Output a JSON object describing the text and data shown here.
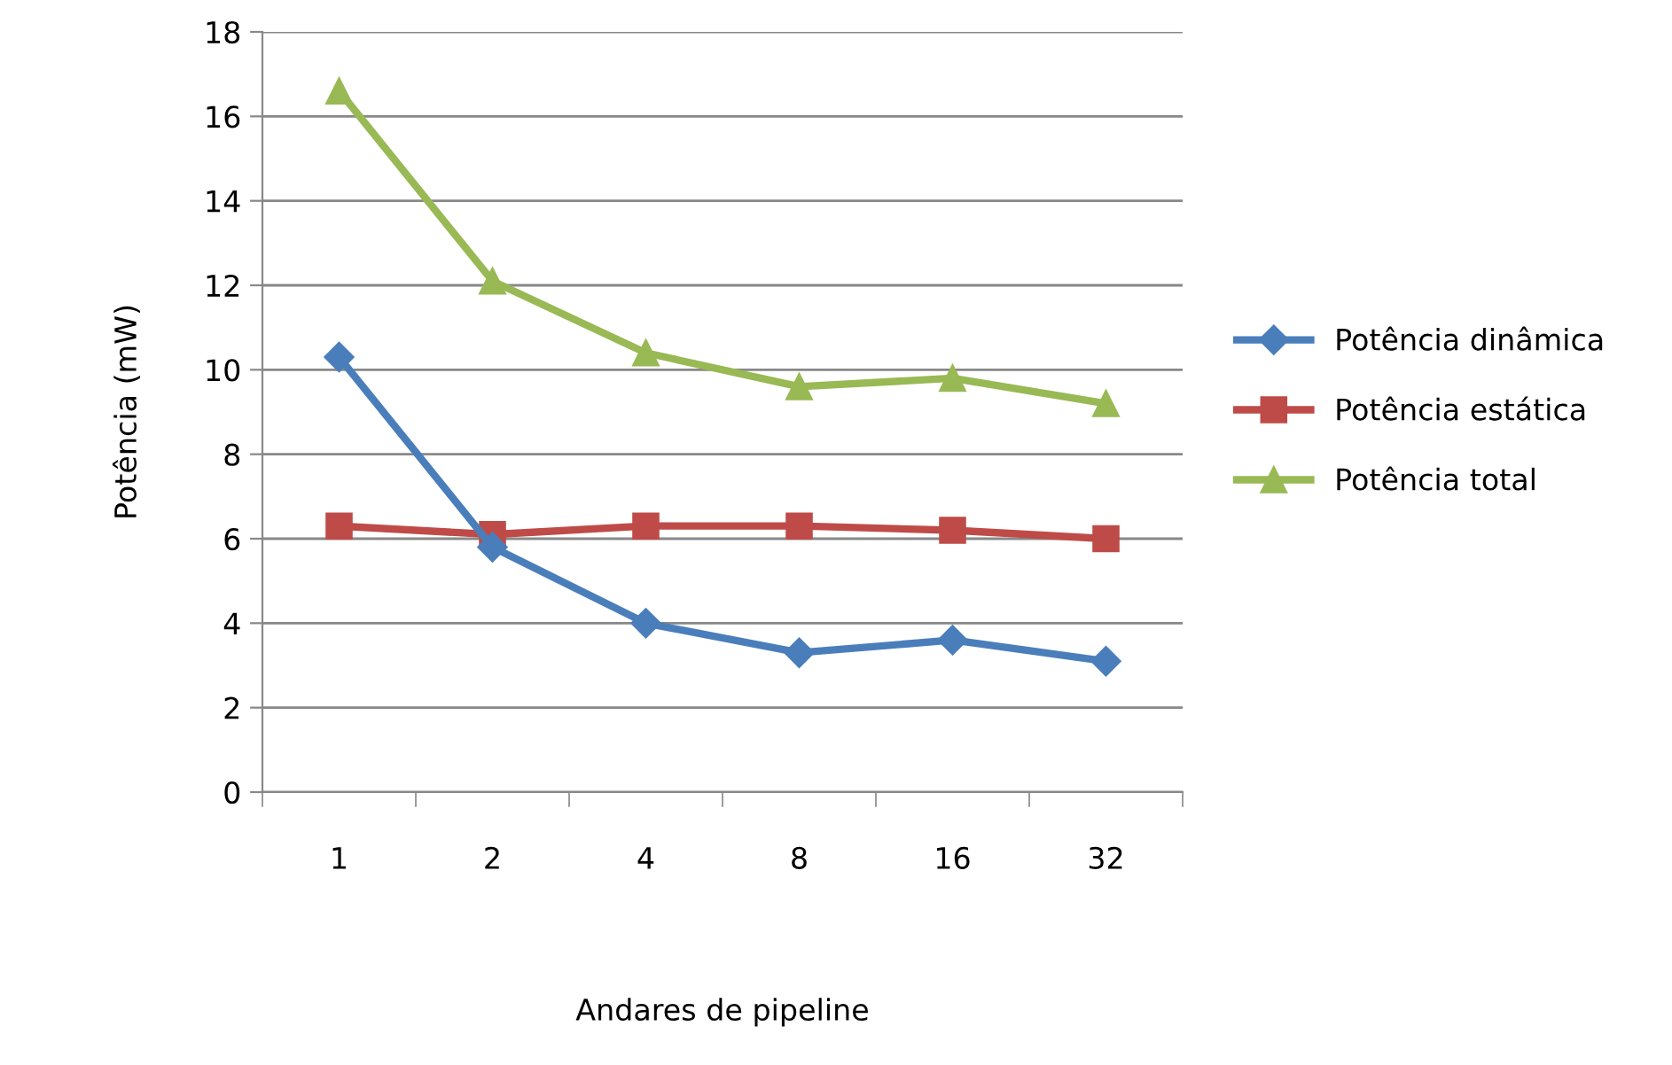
{
  "chart_data": {
    "type": "line",
    "xlabel": "Andares de pipeline",
    "ylabel": "Potência (mW)",
    "categories": [
      "1",
      "2",
      "4",
      "8",
      "16",
      "32"
    ],
    "series": [
      {
        "name": "Potência dinâmica",
        "color": "#4a7ebb",
        "marker": "diamond",
        "values": [
          10.3,
          5.8,
          4.0,
          3.3,
          3.6,
          3.1
        ]
      },
      {
        "name": "Potência estática",
        "color": "#be4b48",
        "marker": "square",
        "values": [
          6.3,
          6.1,
          6.3,
          6.3,
          6.2,
          6.0
        ]
      },
      {
        "name": "Potência total",
        "color": "#98b954",
        "marker": "triangle",
        "values": [
          16.6,
          12.1,
          10.4,
          9.6,
          9.8,
          9.2
        ]
      }
    ],
    "ylim": [
      0,
      18
    ],
    "yticks": [
      0,
      2,
      4,
      6,
      8,
      10,
      12,
      14,
      16,
      18
    ],
    "grid": "y",
    "legend": "right",
    "line_style": "solid"
  }
}
